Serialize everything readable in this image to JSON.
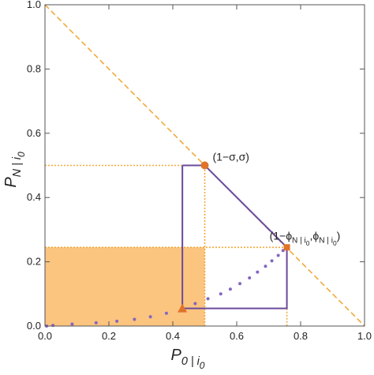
{
  "chart_data": {
    "type": "line",
    "xlim": [
      0,
      1
    ],
    "ylim": [
      0,
      1
    ],
    "xticks": [
      {
        "value": 0,
        "label": "0.0"
      },
      0.2,
      0.4,
      0.6,
      0.8,
      {
        "value": 1,
        "label": "1.0"
      }
    ],
    "yticks": [
      {
        "value": 0,
        "label": "0.0"
      },
      0.2,
      0.4,
      0.6,
      0.8,
      {
        "value": 1,
        "label": "1.0"
      }
    ],
    "x_label": [
      {
        "text": "P"
      },
      {
        "text": "0 | i",
        "sub": 1
      },
      {
        "text": "0",
        "sub": 2
      }
    ],
    "y_label": [
      {
        "text": "P"
      },
      {
        "text": "N | i",
        "sub": 1
      },
      {
        "text": "0",
        "sub": 2
      }
    ],
    "annotations": [
      [
        {
          "text": "(1−σ,σ)"
        }
      ],
      [
        {
          "text": "(1−ϕ"
        },
        {
          "text": "N | i",
          "sub": 1
        },
        {
          "text": "0",
          "sub": 2
        },
        {
          "text": ",ϕ"
        },
        {
          "text": "N | i",
          "sub": 1
        },
        {
          "text": "0",
          "sub": 2
        },
        {
          "text": ")"
        }
      ]
    ],
    "series": [
      {
        "type": "area",
        "color": "#fbc47f",
        "x": [
          0,
          0.5
        ],
        "values": [
          0.245,
          0.245
        ]
      },
      {
        "type": "line",
        "dash": "dotted",
        "color": "#f2a93b",
        "x": [
          0,
          0.5,
          0.5
        ],
        "values": [
          0.5,
          0.5,
          0
        ]
      },
      {
        "type": "line",
        "dash": "dotted",
        "color": "#f2a93b",
        "x": [
          0,
          0.757,
          0.757
        ],
        "values": [
          0.245,
          0.245,
          0
        ]
      },
      {
        "type": "line",
        "dash": "dashed",
        "color": "#f2a93b",
        "x": [
          0,
          1
        ],
        "values": [
          1,
          0
        ]
      },
      {
        "type": "line",
        "dash": "solid",
        "color": "#6a4a9c",
        "x": [
          0.43,
          0.5,
          0.757,
          0.757,
          0.43,
          0.43
        ],
        "values": [
          0.5,
          0.5,
          0.245,
          0.055,
          0.055,
          0.5
        ]
      },
      {
        "type": "scatter",
        "marker": "dot",
        "color": "#8566bf",
        "x": [
          0.005,
          0.025,
          0.085,
          0.16,
          0.225,
          0.28,
          0.33,
          0.38,
          0.47,
          0.51,
          0.55,
          0.58,
          0.61,
          0.64,
          0.665,
          0.69,
          0.71,
          0.73,
          0.745
        ],
        "values": [
          0,
          0.002,
          0.006,
          0.01,
          0.015,
          0.021,
          0.029,
          0.04,
          0.07,
          0.085,
          0.1,
          0.115,
          0.132,
          0.15,
          0.168,
          0.186,
          0.203,
          0.22,
          0.235
        ]
      },
      {
        "type": "scatter",
        "marker": "circle",
        "color": "#e0722a",
        "x": [
          0.5
        ],
        "values": [
          0.5
        ]
      },
      {
        "type": "scatter",
        "marker": "square",
        "color": "#e0722a",
        "x": [
          0.757
        ],
        "values": [
          0.245
        ]
      },
      {
        "type": "scatter",
        "marker": "triangle",
        "color": "#e0722a",
        "x": [
          0.43
        ],
        "values": [
          0.055
        ]
      }
    ]
  }
}
